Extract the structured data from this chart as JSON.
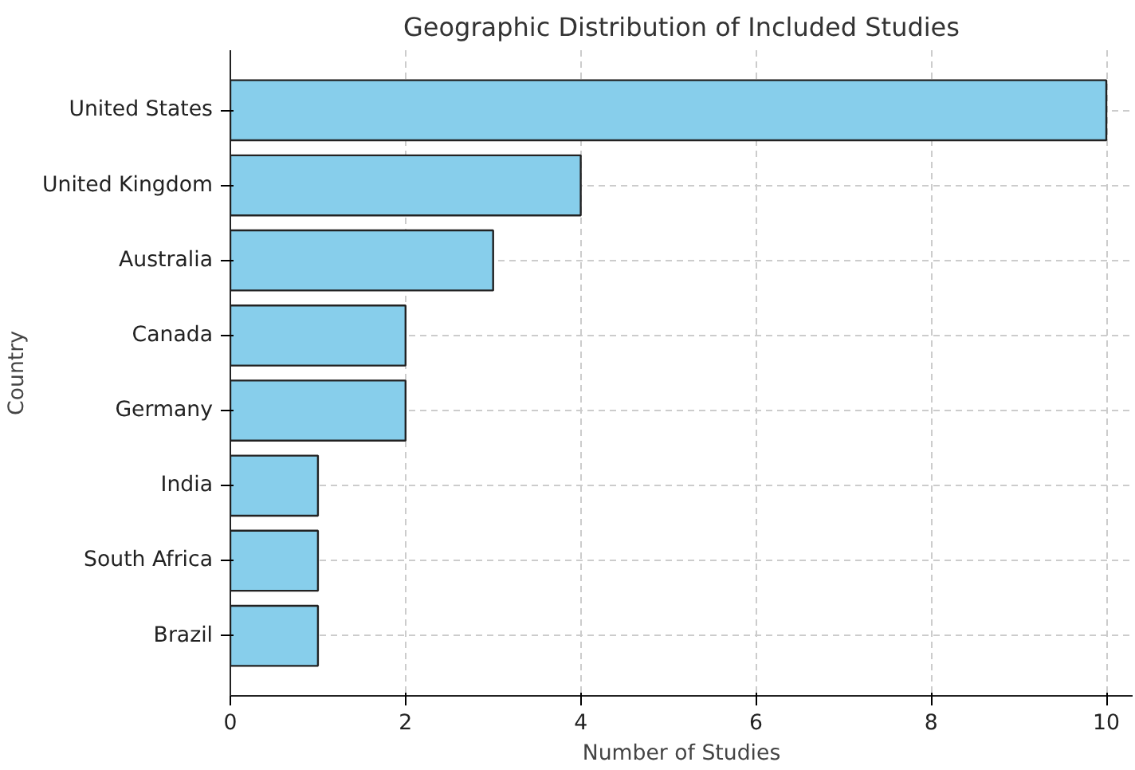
{
  "chart_data": {
    "type": "bar",
    "orientation": "horizontal",
    "title": "Geographic Distribution of Included Studies",
    "xlabel": "Number of Studies",
    "ylabel": "Country",
    "categories": [
      "United States",
      "United Kingdom",
      "Australia",
      "Canada",
      "Germany",
      "India",
      "South Africa",
      "Brazil"
    ],
    "values": [
      10,
      4,
      3,
      2,
      2,
      1,
      1,
      1
    ],
    "color": "#87ceeb",
    "xlim": [
      0,
      10.3
    ],
    "xticks": [
      0,
      2,
      4,
      6,
      8,
      10
    ],
    "grid": true
  }
}
